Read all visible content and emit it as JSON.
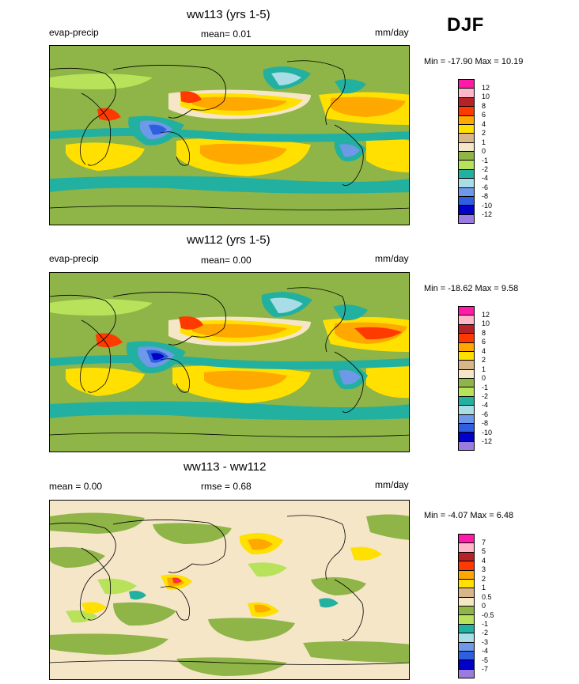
{
  "season": "DJF",
  "colors": {
    "p12": "#ff1aa8",
    "p10": "#ffb6c8",
    "p8": "#b52228",
    "p6": "#ff3a00",
    "p4": "#ffa800",
    "p2": "#ffe000",
    "p1": "#d8b68a",
    "p0": "#f5e6c8",
    "n1": "#8fb447",
    "n2": "#b7e25a",
    "n4": "#22b0a0",
    "n6": "#a8dce6",
    "n8": "#6e98e8",
    "n10": "#2e5fe0",
    "n12": "#0000c8",
    "n14": "#9a7ce0"
  },
  "panels": [
    {
      "title": "ww113 (yrs 1-5)",
      "left_label": "evap-precip",
      "center_label": "mean=  0.01",
      "right_label": "mm/day",
      "minmax": "Min = -17.90 Max =  10.19",
      "colorbar": {
        "colors": [
          "#ff1aa8",
          "#ffb6c8",
          "#b52228",
          "#ff3a00",
          "#ffa800",
          "#ffe000",
          "#d8b68a",
          "#f5e6c8",
          "#8fb447",
          "#b7e25a",
          "#22b0a0",
          "#a8dce6",
          "#6e98e8",
          "#2e5fe0",
          "#0000c8",
          "#9a7ce0"
        ],
        "ticks": [
          "12",
          "10",
          "8",
          "6",
          "4",
          "2",
          "1",
          "0",
          "-1",
          "-2",
          "-4",
          "-6",
          "-8",
          "-10",
          "-12"
        ]
      }
    },
    {
      "title": "ww112 (yrs 1-5)",
      "left_label": "evap-precip",
      "center_label": "mean=  0.00",
      "right_label": "mm/day",
      "minmax": "Min = -18.62 Max =   9.58",
      "colorbar": {
        "colors": [
          "#ff1aa8",
          "#ffb6c8",
          "#b52228",
          "#ff3a00",
          "#ffa800",
          "#ffe000",
          "#d8b68a",
          "#f5e6c8",
          "#8fb447",
          "#b7e25a",
          "#22b0a0",
          "#a8dce6",
          "#6e98e8",
          "#2e5fe0",
          "#0000c8",
          "#9a7ce0"
        ],
        "ticks": [
          "12",
          "10",
          "8",
          "6",
          "4",
          "2",
          "1",
          "0",
          "-1",
          "-2",
          "-4",
          "-6",
          "-8",
          "-10",
          "-12"
        ]
      }
    },
    {
      "title": "ww113 - ww112",
      "left_label": "mean =   0.00",
      "center_label": "rmse =   0.68",
      "right_label": "mm/day",
      "minmax": "Min =  -4.07 Max =   6.48",
      "colorbar": {
        "colors": [
          "#ff1aa8",
          "#ffb6c8",
          "#b52228",
          "#ff3a00",
          "#ffa800",
          "#ffe000",
          "#d8b68a",
          "#f5e6c8",
          "#8fb447",
          "#b7e25a",
          "#22b0a0",
          "#a8dce6",
          "#6e98e8",
          "#2e5fe0",
          "#0000c8",
          "#9a7ce0"
        ],
        "ticks": [
          "7",
          "5",
          "4",
          "3",
          "2",
          "1",
          "0.5",
          "0",
          "-0.5",
          "-1",
          "-2",
          "-3",
          "-4",
          "-5",
          "-7"
        ]
      }
    }
  ]
}
